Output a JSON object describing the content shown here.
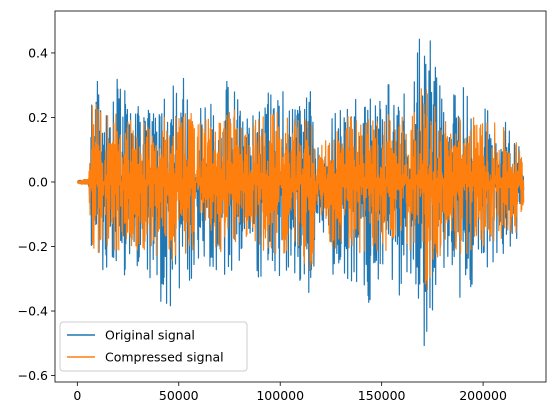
{
  "chart_data": {
    "type": "line",
    "title": "",
    "xlabel": "",
    "ylabel": "",
    "xlim": [
      -11000,
      231000
    ],
    "ylim": [
      -0.62,
      0.53
    ],
    "x_ticks": [
      0,
      50000,
      100000,
      150000,
      200000
    ],
    "x_tick_labels": [
      "0",
      "50000",
      "100000",
      "150000",
      "200000"
    ],
    "y_ticks": [
      -0.6,
      -0.4,
      -0.2,
      0.0,
      0.2,
      0.4
    ],
    "y_tick_labels": [
      "−0.6",
      "−0.4",
      "−0.2",
      "0.0",
      "0.2",
      "0.4"
    ],
    "grid": false,
    "legend": {
      "position": "lower-left",
      "entries": [
        "Original signal",
        "Compressed signal"
      ]
    },
    "signal_range": {
      "x_start": 0,
      "x_onset": 5600,
      "x_end": 220000
    },
    "series": [
      {
        "name": "Original signal",
        "color": "#1f77b4",
        "envelope_x": [
          0,
          5600,
          7000,
          12000,
          20000,
          28000,
          36000,
          45000,
          52000,
          60000,
          68000,
          76000,
          82000,
          90000,
          100000,
          108000,
          116000,
          118000,
          126000,
          134000,
          142000,
          150000,
          152000,
          158000,
          164000,
          168000,
          171000,
          175000,
          180000,
          190000,
          200000,
          210000,
          216000,
          220000
        ],
        "envelope_upper": [
          0.005,
          0.01,
          0.4,
          0.28,
          0.33,
          0.25,
          0.22,
          0.27,
          0.36,
          0.24,
          0.26,
          0.35,
          0.22,
          0.28,
          0.3,
          0.23,
          0.3,
          0.1,
          0.22,
          0.27,
          0.26,
          0.28,
          0.37,
          0.29,
          0.3,
          0.48,
          0.5,
          0.46,
          0.24,
          0.3,
          0.25,
          0.2,
          0.16,
          0.1
        ],
        "envelope_lower": [
          -0.005,
          -0.01,
          -0.33,
          -0.3,
          -0.28,
          -0.3,
          -0.31,
          -0.42,
          -0.32,
          -0.29,
          -0.3,
          -0.29,
          -0.22,
          -0.33,
          -0.3,
          -0.34,
          -0.36,
          -0.1,
          -0.3,
          -0.33,
          -0.4,
          -0.29,
          -0.32,
          -0.37,
          -0.31,
          -0.36,
          -0.59,
          -0.4,
          -0.32,
          -0.38,
          -0.28,
          -0.25,
          -0.2,
          -0.1
        ]
      },
      {
        "name": "Compressed signal",
        "color": "#ff7f0e",
        "envelope_x": [
          0,
          5600,
          7000,
          12000,
          20000,
          28000,
          36000,
          45000,
          52000,
          60000,
          68000,
          76000,
          82000,
          90000,
          100000,
          108000,
          116000,
          118000,
          126000,
          134000,
          142000,
          150000,
          152000,
          158000,
          164000,
          168000,
          171000,
          175000,
          180000,
          190000,
          200000,
          210000,
          216000,
          220000
        ],
        "envelope_upper": [
          0.005,
          0.01,
          0.29,
          0.22,
          0.24,
          0.2,
          0.19,
          0.21,
          0.25,
          0.2,
          0.21,
          0.24,
          0.18,
          0.21,
          0.22,
          0.19,
          0.22,
          0.08,
          0.19,
          0.21,
          0.2,
          0.21,
          0.26,
          0.22,
          0.22,
          0.28,
          0.3,
          0.27,
          0.2,
          0.22,
          0.2,
          0.17,
          0.14,
          0.09
        ],
        "envelope_lower": [
          -0.005,
          -0.01,
          -0.25,
          -0.22,
          -0.21,
          -0.22,
          -0.22,
          -0.26,
          -0.23,
          -0.21,
          -0.22,
          -0.21,
          -0.17,
          -0.23,
          -0.22,
          -0.23,
          -0.3,
          -0.08,
          -0.21,
          -0.23,
          -0.24,
          -0.21,
          -0.23,
          -0.25,
          -0.22,
          -0.24,
          -0.38,
          -0.27,
          -0.22,
          -0.24,
          -0.2,
          -0.19,
          -0.16,
          -0.09
        ]
      }
    ]
  }
}
